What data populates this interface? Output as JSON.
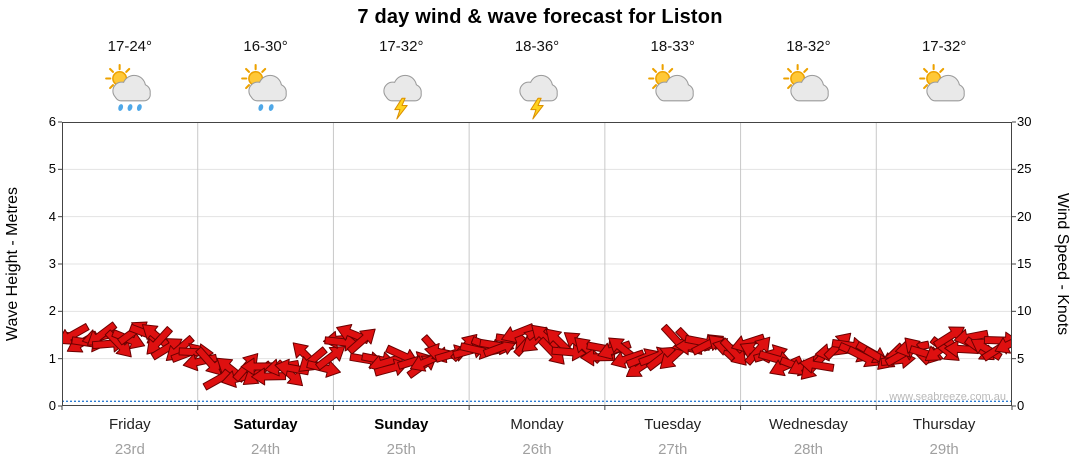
{
  "title": "7 day wind & wave forecast for Liston",
  "watermark": "www.seabreeze.com.au",
  "days": [
    {
      "label": "Friday",
      "date": "23rd",
      "temp": "17-24°",
      "icon": "sun-cloud-showers-icon",
      "bold": false
    },
    {
      "label": "Saturday",
      "date": "24th",
      "temp": "16-30°",
      "icon": "sun-cloud-light-rain-icon",
      "bold": true
    },
    {
      "label": "Sunday",
      "date": "25th",
      "temp": "17-32°",
      "icon": "storm-cloud-icon",
      "bold": true
    },
    {
      "label": "Monday",
      "date": "26th",
      "temp": "18-36°",
      "icon": "storm-cloud-icon",
      "bold": false
    },
    {
      "label": "Tuesday",
      "date": "27th",
      "temp": "18-33°",
      "icon": "sun-cloud-icon",
      "bold": false
    },
    {
      "label": "Wednesday",
      "date": "28th",
      "temp": "18-32°",
      "icon": "sun-cloud-icon",
      "bold": false
    },
    {
      "label": "Thursday",
      "date": "29th",
      "temp": "17-32°",
      "icon": "sun-cloud-icon",
      "bold": false
    }
  ],
  "axes": {
    "left_label": "Wave Height - Metres",
    "right_label": "Wind Speed - Knots",
    "left_ticks": [
      0,
      1,
      2,
      3,
      4,
      5,
      6
    ],
    "right_ticks": [
      0,
      5,
      10,
      15,
      20,
      25,
      30
    ]
  },
  "colors": {
    "arrow": "#de1010",
    "arrow_outline": "#6b0000",
    "wave_line": "#2d7dd2",
    "grid": "#e3e3e3",
    "day_divider": "#c8c8c8",
    "axis": "#444444",
    "sun": "#ffc837",
    "sun_stroke": "#eda200",
    "cloud": "#e9e9e9",
    "cloud_stroke": "#9a9a9a",
    "bolt": "#ffd21e",
    "bolt_stroke": "#db9000",
    "raindrop": "#4fa8e8"
  },
  "chart_data": {
    "type": "line",
    "title": "7 day wind & wave forecast for Liston",
    "categories": [
      "Friday 23rd",
      "Saturday 24th",
      "Sunday 25th",
      "Monday 26th",
      "Tuesday 27th",
      "Wednesday 28th",
      "Thursday 29th"
    ],
    "points_per_day": 8,
    "x_unit": "3-hour intervals across 7 days",
    "ylabel_left": "Wave Height - Metres",
    "ylabel_right": "Wind Speed - Knots",
    "ylim_left": [
      0,
      6
    ],
    "ylim_right": [
      0,
      30
    ],
    "grid": true,
    "legend": false,
    "marker_style": "red wind direction arrows",
    "series": [
      {
        "name": "Wind Speed",
        "unit": "knots",
        "axis": "right",
        "values": [
          8.0,
          7.2,
          6.6,
          7.0,
          7.2,
          6.8,
          6.4,
          5.8,
          4.6,
          3.6,
          3.2,
          3.8,
          3.4,
          4.2,
          4.6,
          4.2,
          6.6,
          7.4,
          5.2,
          4.2,
          5.4,
          5.0,
          5.8,
          5.4,
          5.6,
          6.2,
          6.8,
          7.2,
          6.6,
          6.0,
          6.4,
          5.8,
          6.0,
          4.8,
          4.2,
          5.6,
          6.6,
          6.8,
          6.2,
          6.4,
          5.6,
          4.8,
          4.2,
          4.6,
          5.2,
          5.8,
          5.6,
          5.0,
          4.8,
          5.4,
          6.2,
          6.8,
          6.4,
          6.8,
          6.4,
          5.9
        ]
      },
      {
        "name": "Wave Height",
        "unit": "metres",
        "axis": "left",
        "values": [
          0.1,
          0.1,
          0.1,
          0.1,
          0.1,
          0.1,
          0.1,
          0.1,
          0.1,
          0.1,
          0.1,
          0.1,
          0.1,
          0.1
        ]
      }
    ]
  }
}
